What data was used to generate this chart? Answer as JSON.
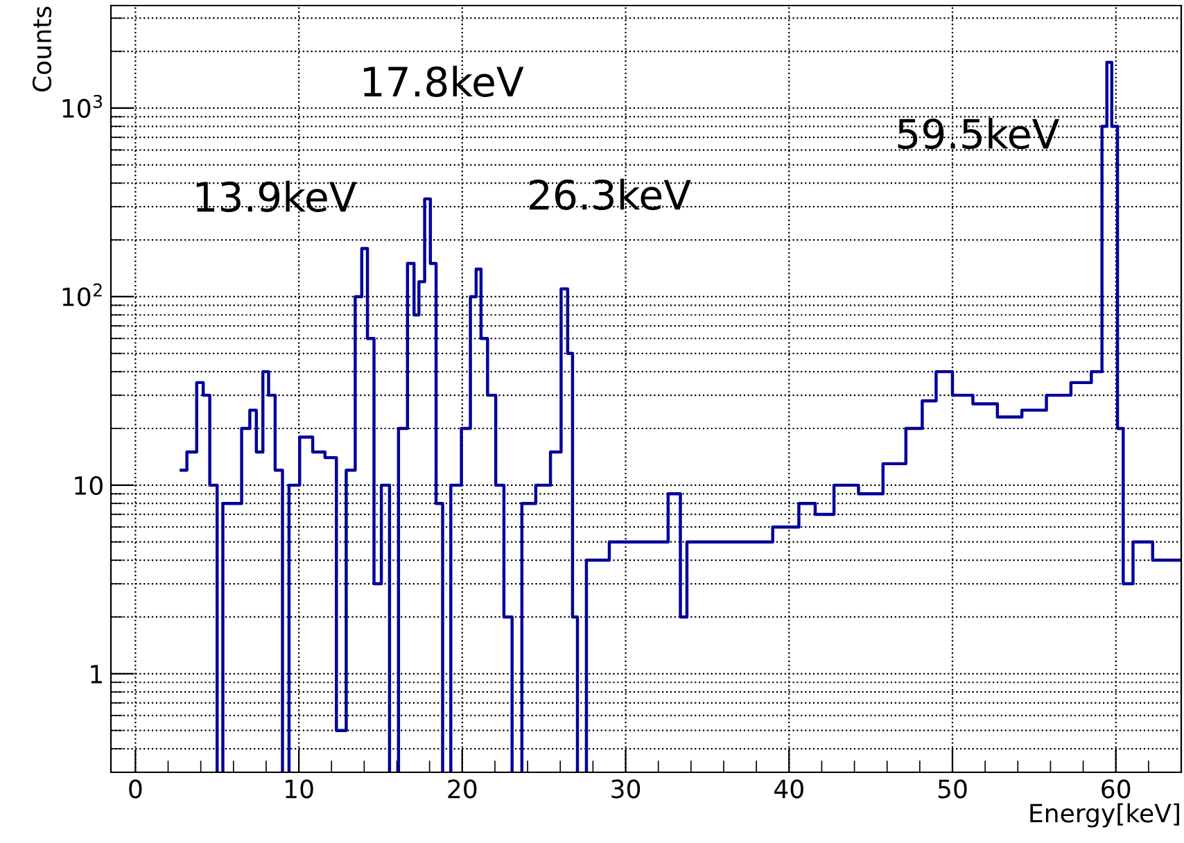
{
  "chart_data": {
    "type": "step",
    "xlabel": "Energy[keV]",
    "ylabel": "Counts",
    "xlim": [
      -1.5,
      64
    ],
    "ylim": [
      0.3,
      3500
    ],
    "log": "y",
    "grid": true,
    "xticks": [
      0,
      10,
      20,
      30,
      40,
      50,
      60
    ],
    "yticks": [
      1,
      10,
      {
        "value": 100,
        "label": "10$^{2}$"
      },
      {
        "value": 1000,
        "label": "10$^{3}$"
      }
    ],
    "series": [
      {
        "color": "#00009c",
        "x": [
          2.8,
          3.5,
          4.0,
          4.3,
          4.8,
          5.2,
          5.5,
          6.2,
          6.8,
          7.2,
          7.6,
          8.0,
          8.3,
          8.8,
          9.2,
          9.6,
          10.5,
          11.2,
          12.0,
          12.6,
          13.2,
          13.7,
          14.0,
          14.4,
          14.8,
          15.3,
          15.8,
          16.4,
          16.9,
          17.2,
          17.5,
          17.9,
          18.2,
          18.6,
          19.0,
          19.6,
          20.3,
          20.7,
          21.0,
          21.3,
          21.8,
          22.3,
          22.8,
          23.3,
          24.0,
          25.0,
          25.8,
          26.3,
          26.6,
          26.9,
          27.2,
          28,
          30,
          32,
          33.2,
          33.5,
          34,
          36,
          38,
          40,
          41.2,
          42,
          43.5,
          45,
          46.5,
          47.8,
          48.5,
          49.5,
          50.5,
          52,
          53.5,
          55,
          56.5,
          58,
          59.0,
          59.3,
          59.6,
          59.9,
          60.3,
          60.6,
          61.5,
          63,
          64
        ],
        "values": [
          12,
          15,
          35,
          30,
          10,
          null,
          8,
          8,
          20,
          25,
          15,
          40,
          30,
          12,
          null,
          10,
          18,
          15,
          14,
          0.5,
          12,
          100,
          180,
          60,
          3,
          10,
          null,
          20,
          150,
          80,
          120,
          330,
          150,
          8,
          null,
          10,
          20,
          100,
          140,
          60,
          30,
          10,
          2,
          null,
          8,
          10,
          15,
          110,
          50,
          2,
          null,
          4,
          5,
          5,
          9,
          2,
          5,
          5,
          5,
          6,
          8,
          7,
          10,
          9,
          13,
          20,
          28,
          40,
          30,
          27,
          23,
          25,
          30,
          35,
          40,
          800,
          1750,
          800,
          20,
          3,
          5,
          4,
          4
        ]
      }
    ],
    "annotations": [
      {
        "text": "13.9keV",
        "x": 13.9,
        "y": 180
      },
      {
        "text": "17.8keV",
        "x": 17.8,
        "y": 330
      },
      {
        "text": "26.3keV",
        "x": 26.3,
        "y": 110
      },
      {
        "text": "59.5keV",
        "x": 59.5,
        "y": 1750
      }
    ]
  }
}
